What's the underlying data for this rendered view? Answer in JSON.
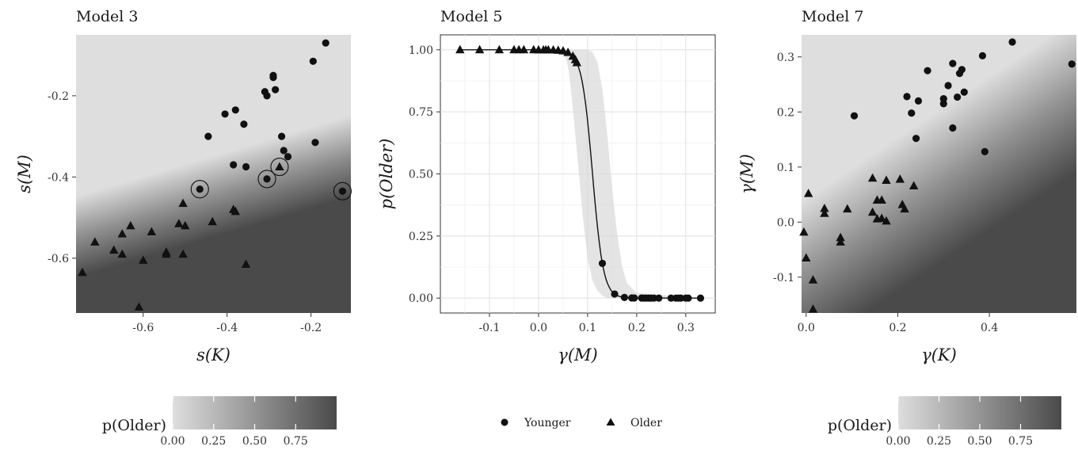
{
  "chart_data": [
    {
      "type": "scatter",
      "title": "Model 3",
      "xlabel": "s(K)",
      "ylabel": "s(M)",
      "xlim": [
        -0.76,
        -0.105
      ],
      "ylim": [
        -0.735,
        -0.05
      ],
      "xticks": [
        -0.6,
        -0.4,
        -0.2
      ],
      "yticks": [
        -0.6,
        -0.4,
        -0.2
      ],
      "xtick_labels": [
        "-0.6",
        "-0.4",
        "-0.2"
      ],
      "ytick_labels": [
        "-0.6",
        "-0.4",
        "-0.2"
      ],
      "background": "probability-gradient",
      "grid": false,
      "series": [
        {
          "name": "Younger",
          "marker": "circle",
          "x": [
            -0.165,
            -0.195,
            -0.19,
            -0.29,
            -0.29,
            -0.285,
            -0.31,
            -0.305,
            -0.36,
            -0.38,
            -0.405,
            -0.445,
            -0.27,
            -0.265,
            -0.255,
            -0.355,
            -0.385,
            -0.465,
            -0.305,
            -0.125
          ],
          "y": [
            -0.07,
            -0.115,
            -0.315,
            -0.15,
            -0.155,
            -0.185,
            -0.19,
            -0.2,
            -0.27,
            -0.235,
            -0.245,
            -0.3,
            -0.3,
            -0.335,
            -0.35,
            -0.375,
            -0.37,
            -0.43,
            -0.405,
            -0.435
          ]
        },
        {
          "name": "Older",
          "marker": "triangle",
          "x": [
            -0.275,
            -0.385,
            -0.38,
            -0.355,
            -0.435,
            -0.505,
            -0.5,
            -0.515,
            -0.545,
            -0.58,
            -0.6,
            -0.63,
            -0.65,
            -0.65,
            -0.67,
            -0.715,
            -0.745,
            -0.505,
            -0.545,
            -0.61
          ],
          "y": [
            -0.375,
            -0.48,
            -0.485,
            -0.615,
            -0.51,
            -0.465,
            -0.52,
            -0.515,
            -0.585,
            -0.535,
            -0.605,
            -0.52,
            -0.54,
            -0.59,
            -0.58,
            -0.56,
            -0.635,
            -0.59,
            -0.59,
            -0.72
          ]
        }
      ],
      "highlighted_points": [
        {
          "x": -0.465,
          "y": -0.43
        },
        {
          "x": -0.305,
          "y": -0.405
        },
        {
          "x": -0.275,
          "y": -0.375
        },
        {
          "x": -0.125,
          "y": -0.435
        }
      ],
      "legend": {
        "title": "p(Older)",
        "type": "colorbar",
        "ticks": [
          0,
          0.25,
          0.5,
          0.75
        ],
        "tick_labels": [
          "0.00",
          "0.25",
          "0.50",
          "0.75"
        ],
        "colors": [
          "#dedede",
          "#4a4a4a"
        ],
        "placement": "bottom"
      }
    },
    {
      "type": "line",
      "title": "Model 5",
      "xlabel": "γ(M)",
      "ylabel": "p(Older)",
      "xlim": [
        -0.2,
        0.36
      ],
      "ylim": [
        -0.06,
        1.06
      ],
      "xticks": [
        -0.1,
        0.0,
        0.1,
        0.2,
        0.3
      ],
      "yticks": [
        0,
        0.25,
        0.5,
        0.75,
        1.0
      ],
      "xtick_labels": [
        "-0.1",
        "0.0",
        "0.1",
        "0.2",
        "0.3"
      ],
      "ytick_labels": [
        "0.00",
        "0.25",
        "0.50",
        "0.75",
        "1.00"
      ],
      "grid": true,
      "curve": {
        "form": "logistic",
        "midpoint": 0.11,
        "scale": 0.011
      },
      "band": {
        "x": [
          -0.16,
          0.03,
          0.055,
          0.06,
          0.065,
          0.07,
          0.08,
          0.09,
          0.1,
          0.11,
          0.12,
          0.13,
          0.14,
          0.15,
          0.16,
          0.17,
          0.18,
          0.2,
          0.33
        ],
        "upper": [
          1.0,
          1.0,
          1.0,
          1.0,
          1.0,
          1.0,
          1.0,
          1.0,
          1.0,
          0.99,
          0.95,
          0.84,
          0.66,
          0.44,
          0.26,
          0.13,
          0.06,
          0.02,
          0.0
        ],
        "lower": [
          1.0,
          1.0,
          0.97,
          0.93,
          0.86,
          0.76,
          0.55,
          0.33,
          0.16,
          0.07,
          0.03,
          0.01,
          0.0,
          0.0,
          0.0,
          0.0,
          0.0,
          0.0,
          0.0
        ]
      },
      "series": [
        {
          "name": "Younger",
          "marker": "circle",
          "x": [
            0.13,
            0.155,
            0.175,
            0.19,
            0.195,
            0.21,
            0.215,
            0.22,
            0.225,
            0.23,
            0.235,
            0.245,
            0.27,
            0.28,
            0.285,
            0.29,
            0.3,
            0.305,
            0.33
          ]
        },
        {
          "name": "Older",
          "marker": "triangle",
          "x": [
            -0.16,
            -0.12,
            -0.08,
            -0.05,
            -0.04,
            -0.03,
            -0.01,
            0.0,
            0.01,
            0.015,
            0.02,
            0.03,
            0.04,
            0.05,
            0.06,
            0.07,
            0.075,
            0.078
          ]
        }
      ],
      "legend": {
        "entries": [
          {
            "label": "Younger",
            "marker": "circle"
          },
          {
            "label": "Older",
            "marker": "triangle"
          }
        ],
        "placement": "bottom"
      }
    },
    {
      "type": "scatter",
      "title": "Model 7",
      "xlabel": "γ(K)",
      "ylabel": "γ(M)",
      "xlim": [
        -0.01,
        0.59
      ],
      "ylim": [
        -0.165,
        0.34
      ],
      "xticks": [
        0.0,
        0.2,
        0.4
      ],
      "yticks": [
        -0.1,
        0.0,
        0.1,
        0.2,
        0.3
      ],
      "xtick_labels": [
        "0.0",
        "0.2",
        "0.4"
      ],
      "ytick_labels": [
        "-0.1",
        "0.0",
        "0.1",
        "0.2",
        "0.3"
      ],
      "background": "probability-gradient",
      "grid": false,
      "series": [
        {
          "name": "Younger",
          "marker": "circle",
          "x": [
            0.45,
            0.58,
            0.385,
            0.32,
            0.34,
            0.335,
            0.265,
            0.31,
            0.345,
            0.22,
            0.245,
            0.23,
            0.3,
            0.3,
            0.33,
            0.105,
            0.24,
            0.32,
            0.39
          ],
          "y": [
            0.327,
            0.287,
            0.302,
            0.288,
            0.277,
            0.27,
            0.275,
            0.248,
            0.236,
            0.228,
            0.22,
            0.198,
            0.224,
            0.215,
            0.227,
            0.193,
            0.152,
            0.171,
            0.128
          ]
        },
        {
          "name": "Older",
          "marker": "triangle",
          "x": [
            0.145,
            0.205,
            0.235,
            0.175,
            0.155,
            0.165,
            0.21,
            0.215,
            0.145,
            0.155,
            0.165,
            0.175,
            0.04,
            0.04,
            0.005,
            0.09,
            0.075,
            0.075,
            -0.005,
            0.0,
            0.015,
            0.015
          ],
          "y": [
            0.08,
            0.078,
            0.066,
            0.076,
            0.04,
            0.04,
            0.032,
            0.024,
            0.018,
            0.006,
            0.007,
            0.002,
            0.025,
            0.016,
            0.052,
            0.024,
            -0.028,
            -0.036,
            -0.018,
            -0.065,
            -0.105,
            -0.158
          ]
        }
      ],
      "legend": {
        "title": "p(Older)",
        "type": "colorbar",
        "ticks": [
          0,
          0.25,
          0.5,
          0.75
        ],
        "tick_labels": [
          "0.00",
          "0.25",
          "0.50",
          "0.75"
        ],
        "colors": [
          "#dedede",
          "#4a4a4a"
        ],
        "placement": "bottom"
      }
    }
  ]
}
